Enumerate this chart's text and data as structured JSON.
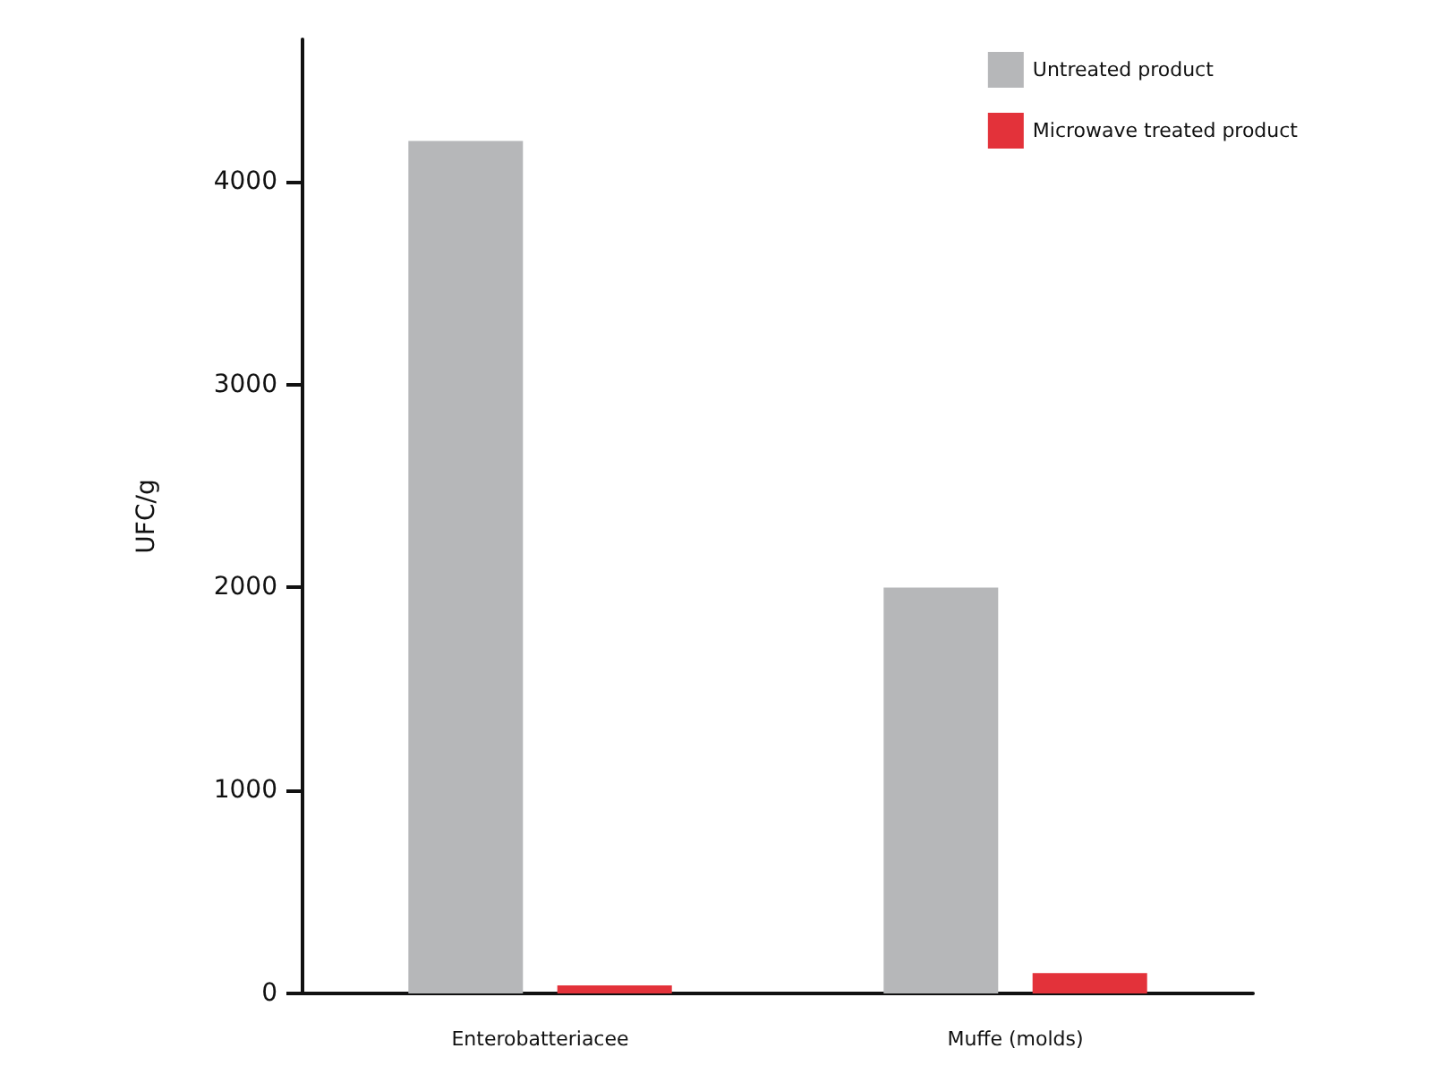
{
  "chart_data": {
    "type": "bar",
    "ylabel": "UFC/g",
    "categories": [
      "Enterobatteriacee",
      "Muffe (molds)"
    ],
    "series": [
      {
        "name": "Untreated product",
        "color": "#b6b7b9",
        "values": [
          4200,
          2000
        ]
      },
      {
        "name": "Microwave treated product",
        "color": "#e3323a",
        "values": [
          40,
          100
        ]
      }
    ],
    "ylim": [
      0,
      4700
    ],
    "yticks": [
      0,
      1000,
      2000,
      3000,
      4000
    ],
    "grid": false,
    "legend": "top right"
  }
}
